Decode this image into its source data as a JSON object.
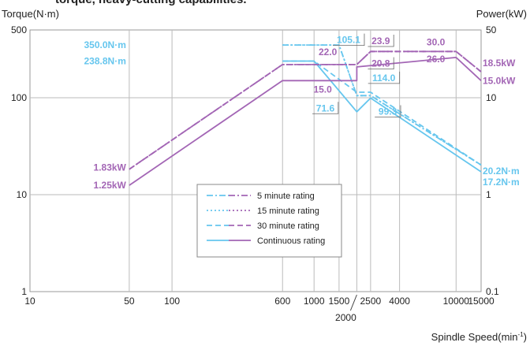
{
  "header_text": "torque, heavy-cutting capabilities.",
  "chart_data": {
    "type": "line",
    "x_scale": "log",
    "y_scale": "log",
    "xlim": [
      10,
      15000
    ],
    "ylim_torque": [
      1,
      500
    ],
    "ylim_power": [
      0.1,
      50
    ],
    "left_axis_title": "Torque(N·m)",
    "right_axis_title": "Power(kW)",
    "x_axis_title": "Spindle Speed(min",
    "x_axis_title_sup": "-1",
    "x_axis_title_close": ")",
    "x_ticks": [
      "10",
      "50",
      "100",
      "600",
      "1000",
      "1500",
      "2500",
      "4000",
      "10000",
      "15000"
    ],
    "x_tick_extra": "2000",
    "left_ticks": [
      "500",
      "100",
      "10",
      "1"
    ],
    "right_ticks": [
      "50",
      "10",
      "1",
      "0.1"
    ],
    "grid": true,
    "colors": {
      "torque": "#66c6ee",
      "power": "#a366b5"
    },
    "series": [
      {
        "name": "5 minute rating",
        "quantity": "torque",
        "style": "dashdot",
        "x": [
          600,
          1500,
          2000,
          2500,
          15000
        ],
        "y": [
          350.0,
          350.0,
          105.1,
          105.1,
          20.2
        ]
      },
      {
        "name": "15 minute rating",
        "quantity": "torque",
        "style": "dotted",
        "x": [
          600,
          1500,
          2000,
          2500,
          15000
        ],
        "y": [
          350.0,
          350.0,
          105.1,
          105.1,
          20.2
        ]
      },
      {
        "name": "30 minute rating",
        "quantity": "torque",
        "style": "dashed",
        "x": [
          600,
          1000,
          2000,
          2500,
          15000
        ],
        "y": [
          238.8,
          238.8,
          114.0,
          114.0,
          20.2
        ]
      },
      {
        "name": "Continuous rating",
        "quantity": "torque",
        "style": "solid",
        "x": [
          600,
          1000,
          2000,
          2500,
          15000
        ],
        "y": [
          238.8,
          238.8,
          71.6,
          99.3,
          17.2
        ]
      },
      {
        "name": "5 minute rating",
        "quantity": "power",
        "style": "dashdot",
        "x": [
          50,
          600,
          2000,
          2500,
          10000,
          15000
        ],
        "y": [
          1.83,
          22.0,
          22.0,
          30.0,
          30.0,
          18.5
        ]
      },
      {
        "name": "15 minute rating",
        "quantity": "power",
        "style": "dotted",
        "x": [
          50,
          600,
          2000,
          2500,
          10000,
          15000
        ],
        "y": [
          1.83,
          22.0,
          22.0,
          30.0,
          30.0,
          18.5
        ]
      },
      {
        "name": "30 minute rating",
        "quantity": "power",
        "style": "dashed",
        "x": [
          50,
          600,
          2000,
          2500,
          10000,
          15000
        ],
        "y": [
          1.83,
          22.0,
          22.0,
          30.0,
          30.0,
          18.5
        ]
      },
      {
        "name": "Continuous rating",
        "quantity": "power",
        "style": "solid",
        "x": [
          50,
          600,
          2000,
          2000,
          10000,
          15000
        ],
        "y": [
          1.25,
          15.0,
          15.0,
          20.8,
          26.0,
          15.0
        ]
      }
    ],
    "annotations": [
      {
        "text": "350.0N·m",
        "color": "torque",
        "x": 50,
        "y": 350,
        "align": "end"
      },
      {
        "text": "238.8N·m",
        "color": "torque",
        "x": 50,
        "y": 238.8,
        "align": "end"
      },
      {
        "text": "105.1",
        "color": "torque",
        "x": 1750,
        "y": 395,
        "align": "middle",
        "boxed": true
      },
      {
        "text": "114.0",
        "color": "torque",
        "x": 3100,
        "y": 160,
        "align": "middle",
        "boxed": true
      },
      {
        "text": "71.6",
        "color": "torque",
        "x": 1200,
        "y": 78,
        "align": "middle",
        "boxed": true
      },
      {
        "text": "99.3",
        "color": "torque",
        "x": 3300,
        "y": 72,
        "align": "middle",
        "boxed": true
      },
      {
        "text": "20.2N·m",
        "color": "torque",
        "x": 15000,
        "y": 17.5,
        "align": "start"
      },
      {
        "text": "17.2N·m",
        "color": "torque",
        "x": 15000,
        "y": 13.5,
        "align": "start"
      },
      {
        "text": "22.0",
        "color": "power",
        "x": 1250,
        "y": 295,
        "align": "middle"
      },
      {
        "text": "23.9",
        "color": "power",
        "x": 2950,
        "y": 385,
        "align": "middle",
        "boxed": true
      },
      {
        "text": "30.0",
        "color": "power",
        "x": 7200,
        "y": 375,
        "align": "middle"
      },
      {
        "text": "20.8",
        "color": "power",
        "x": 2950,
        "y": 225,
        "align": "middle",
        "boxed": true
      },
      {
        "text": "26.0",
        "color": "power",
        "x": 7200,
        "y": 250,
        "align": "middle"
      },
      {
        "text": "15.0",
        "color": "power",
        "x": 1150,
        "y": 122,
        "align": "middle"
      },
      {
        "text": "18.5kW",
        "color": "power",
        "x": 15000,
        "y": 228,
        "align": "start"
      },
      {
        "text": "15.0kW",
        "color": "power",
        "x": 15000,
        "y": 150,
        "align": "start"
      },
      {
        "text": "1.83kW",
        "color": "power",
        "x": 50,
        "y": 19,
        "align": "end"
      },
      {
        "text": "1.25kW",
        "color": "power",
        "x": 50,
        "y": 12.5,
        "align": "end"
      }
    ],
    "legend": {
      "placement": "center",
      "items": [
        {
          "label": "5 minute rating",
          "style": "dashdot"
        },
        {
          "label": "15 minute rating",
          "style": "dotted"
        },
        {
          "label": "30 minute rating",
          "style": "dashed"
        },
        {
          "label": "Continuous rating",
          "style": "solid"
        }
      ]
    }
  }
}
